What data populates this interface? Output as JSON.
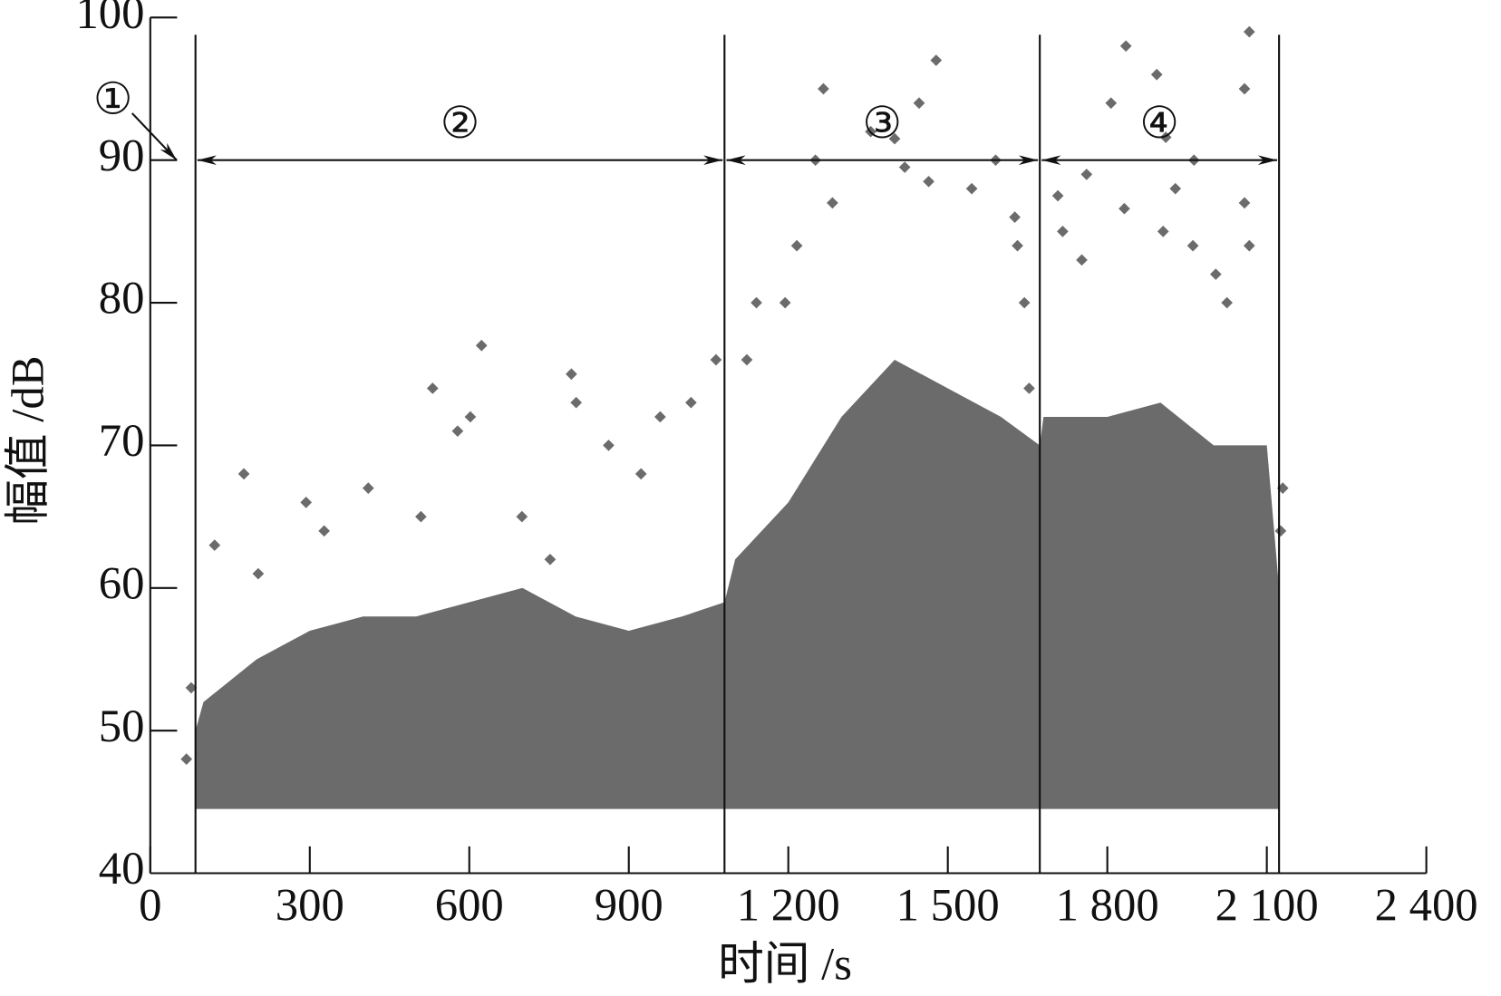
{
  "chart_data": {
    "type": "scatter",
    "xlabel": "时间 /s",
    "ylabel": "幅值 /dB",
    "xlim": [
      0,
      2400
    ],
    "ylim": [
      40,
      100
    ],
    "xticks": [
      0,
      300,
      600,
      900,
      {
        "value": 1200,
        "label": "1 200"
      },
      {
        "value": 1500,
        "label": "1 500"
      },
      {
        "value": 1800,
        "label": "1 800"
      },
      {
        "value": 2100,
        "label": "2 100"
      },
      {
        "value": 2400,
        "label": "2 400"
      }
    ],
    "yticks": [
      40,
      50,
      60,
      70,
      80,
      90,
      100
    ],
    "color": "#6b6b6b",
    "envelope": {
      "x": [
        85,
        100,
        200,
        300,
        400,
        500,
        600,
        700,
        800,
        900,
        1000,
        1080,
        1100,
        1200,
        1300,
        1400,
        1500,
        1600,
        1673,
        1680,
        1800,
        1900,
        2000,
        2100,
        2123
      ],
      "high": [
        50,
        52,
        55,
        57,
        58,
        58,
        59,
        60,
        58,
        57,
        58,
        59,
        62,
        66,
        72,
        76,
        74,
        72,
        70,
        72,
        72,
        73,
        70,
        70,
        60
      ],
      "floor": 44.5
    },
    "x": [
      68,
      77,
      121,
      176,
      203,
      293,
      327,
      410,
      509,
      531,
      578,
      602,
      623,
      699,
      752,
      792,
      801,
      862,
      923,
      959,
      1017,
      1064,
      1122,
      1140,
      1194,
      1216,
      1251,
      1266,
      1283,
      1355,
      1400,
      1419,
      1446,
      1464,
      1478,
      1545,
      1590,
      1626,
      1631,
      1644,
      1653,
      1707,
      1716,
      1752,
      1761,
      1807,
      1832,
      1835,
      1893,
      1905,
      1910,
      1928,
      1961,
      1963,
      2004,
      2025,
      2058,
      2058,
      2067,
      2067,
      2126,
      2130
    ],
    "y": [
      48,
      53,
      63,
      68,
      61,
      66,
      64,
      67,
      65,
      74,
      71,
      72,
      77,
      65,
      62,
      75,
      73,
      70,
      68,
      72,
      73,
      76,
      76,
      80,
      80,
      84,
      90,
      95,
      87,
      92,
      91.5,
      89.5,
      94,
      88.5,
      97,
      88,
      90,
      86,
      84,
      80,
      74,
      87.5,
      85,
      83,
      89,
      94,
      86.6,
      98,
      96,
      85,
      91.6,
      88,
      84,
      90,
      82,
      80,
      87,
      95,
      84,
      99,
      64,
      67
    ],
    "stages": {
      "labels": [
        "①",
        "②",
        "③",
        "④"
      ],
      "bounds": [
        0,
        85,
        1080,
        1673,
        2123
      ],
      "arrow_y": 90
    }
  }
}
